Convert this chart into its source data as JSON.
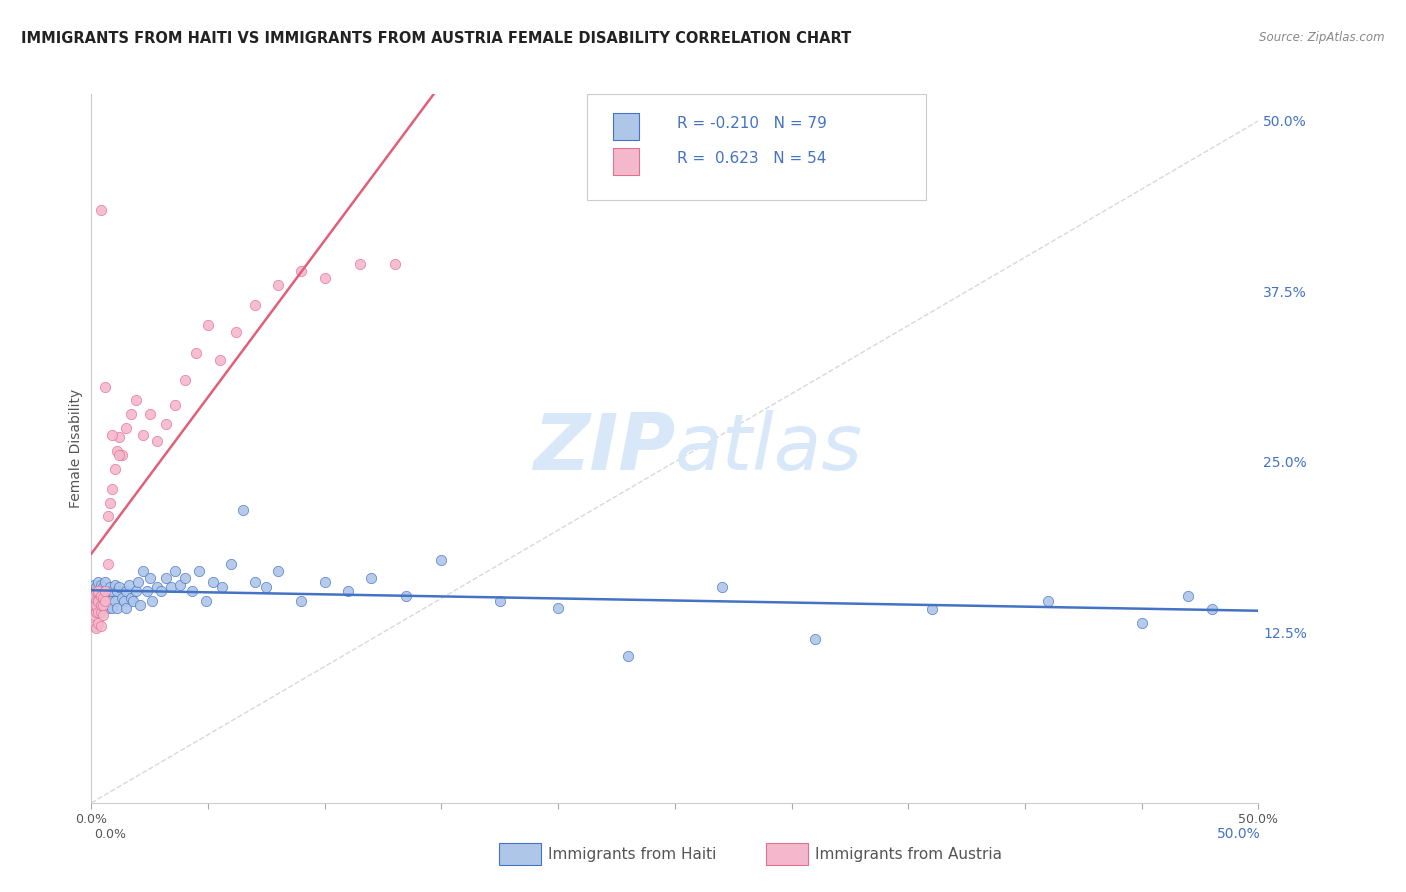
{
  "title": "IMMIGRANTS FROM HAITI VS IMMIGRANTS FROM AUSTRIA FEMALE DISABILITY CORRELATION CHART",
  "source": "Source: ZipAtlas.com",
  "ylabel": "Female Disability",
  "xlim": [
    0.0,
    0.5
  ],
  "ylim": [
    0.0,
    0.52
  ],
  "haiti_color": "#aec6e8",
  "austria_color": "#f4b8cc",
  "haiti_edge_color": "#4472c4",
  "austria_edge_color": "#e07090",
  "haiti_line_color": "#4472c4",
  "austria_line_color": "#e0607a",
  "diag_line_color": "#c8c8c8",
  "R_haiti": -0.21,
  "N_haiti": 79,
  "R_austria": 0.623,
  "N_austria": 54,
  "legend_label_haiti": "Immigrants from Haiti",
  "legend_label_austria": "Immigrants from Austria",
  "right_ytick_vals": [
    0.0,
    0.125,
    0.25,
    0.375,
    0.5
  ],
  "right_ytick_labels": [
    "",
    "12.5%",
    "25.0%",
    "37.5%",
    "50.0%"
  ],
  "background_color": "#ffffff",
  "grid_color": "#e8e8e8",
  "title_fontsize": 10.5,
  "axis_fontsize": 9,
  "tick_label_fontsize": 9,
  "legend_fontsize": 11,
  "watermark_zip": "ZIP",
  "watermark_atlas": "atlas",
  "watermark_color": "#d8e8f8",
  "watermark_fontsize": 56
}
